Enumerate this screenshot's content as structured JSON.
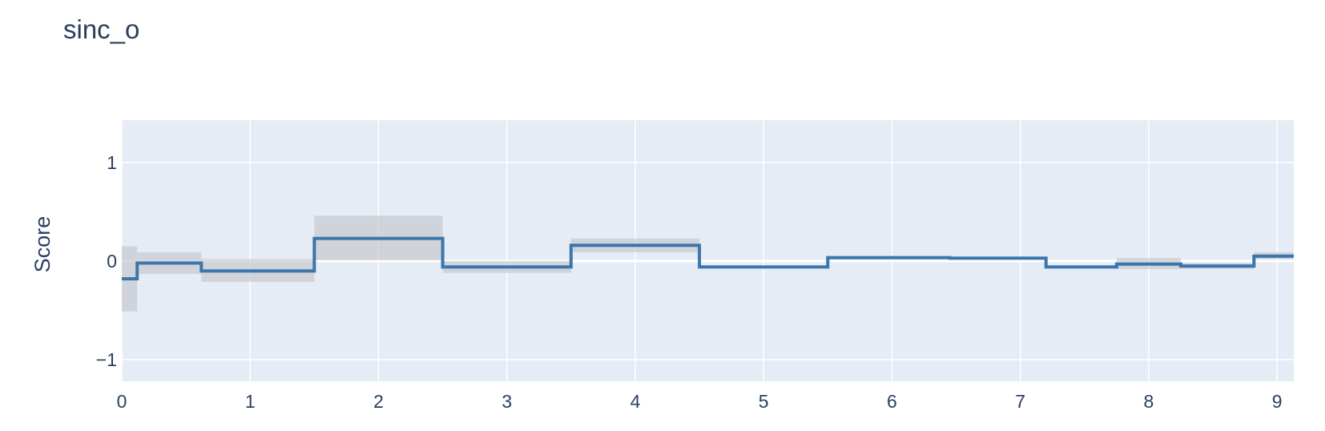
{
  "chart_data": {
    "type": "line",
    "line_shape": "step",
    "title": "sinc_o",
    "xlabel": "",
    "ylabel": "Score",
    "xlim": [
      0,
      9.13
    ],
    "ylim": [
      -1.22,
      1.43
    ],
    "xticks": [
      0,
      1,
      2,
      3,
      4,
      5,
      6,
      7,
      8,
      9
    ],
    "yticks": [
      -1,
      0,
      1
    ],
    "ytick_labels": [
      "−1",
      "0",
      "1"
    ],
    "grid": true,
    "legend": "none",
    "colors": {
      "plot_background": "#e5ecf6",
      "grid": "#ffffff",
      "line": "#3a76ad",
      "band": "#c8c9cd",
      "text": "#2a3f5f"
    },
    "series": [
      {
        "segments": [
          {
            "x0": 0.0,
            "x1": 0.12,
            "value": -0.18,
            "lower": -0.51,
            "upper": 0.15
          },
          {
            "x0": 0.12,
            "x1": 0.62,
            "value": -0.02,
            "lower": -0.13,
            "upper": 0.09
          },
          {
            "x0": 0.62,
            "x1": 1.5,
            "value": -0.1,
            "lower": -0.21,
            "upper": 0.02
          },
          {
            "x0": 1.5,
            "x1": 2.5,
            "value": 0.23,
            "lower": 0.01,
            "upper": 0.46
          },
          {
            "x0": 2.5,
            "x1": 3.5,
            "value": -0.06,
            "lower": -0.12,
            "upper": 0.0
          },
          {
            "x0": 3.5,
            "x1": 4.5,
            "value": 0.16,
            "lower": 0.09,
            "upper": 0.23
          },
          {
            "x0": 4.5,
            "x1": 5.5,
            "value": -0.06,
            "lower": -0.07,
            "upper": -0.05
          },
          {
            "x0": 5.5,
            "x1": 6.45,
            "value": 0.035,
            "lower": 0.025,
            "upper": 0.045
          },
          {
            "x0": 6.45,
            "x1": 7.2,
            "value": 0.03,
            "lower": 0.02,
            "upper": 0.04
          },
          {
            "x0": 7.2,
            "x1": 7.75,
            "value": -0.06,
            "lower": -0.07,
            "upper": -0.05
          },
          {
            "x0": 7.75,
            "x1": 8.25,
            "value": -0.03,
            "lower": -0.08,
            "upper": 0.03
          },
          {
            "x0": 8.25,
            "x1": 8.82,
            "value": -0.05,
            "lower": -0.08,
            "upper": -0.02
          },
          {
            "x0": 8.82,
            "x1": 9.13,
            "value": 0.05,
            "lower": 0.02,
            "upper": 0.09
          }
        ]
      }
    ]
  }
}
